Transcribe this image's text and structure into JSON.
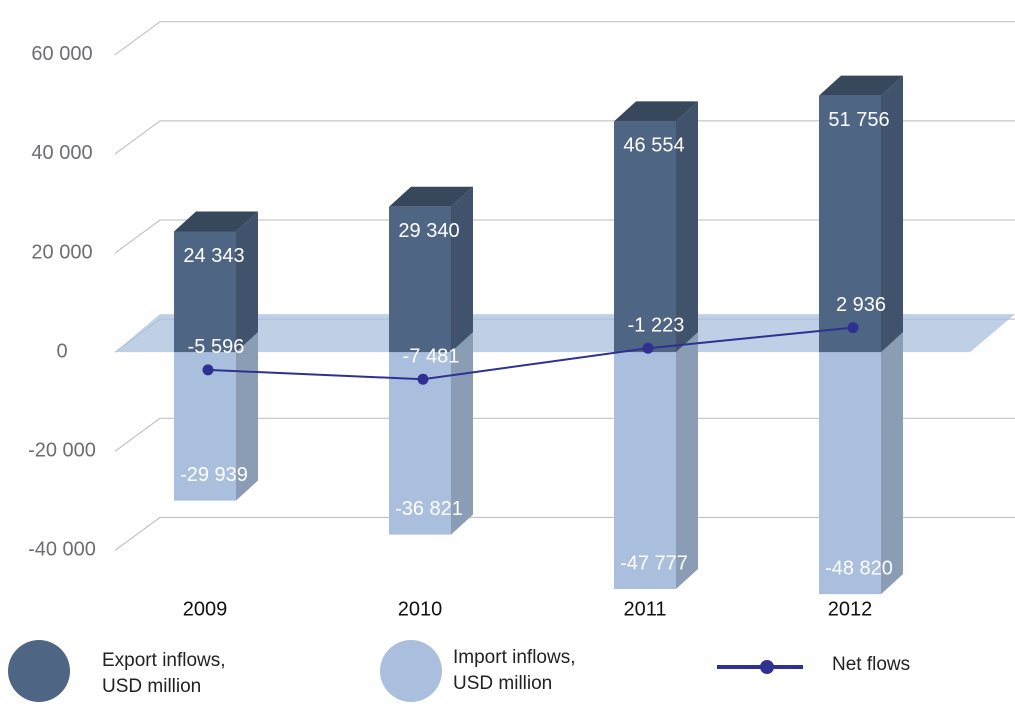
{
  "chart_data": {
    "type": "bar3d",
    "categories": [
      "2009",
      "2010",
      "2011",
      "2012"
    ],
    "series": [
      {
        "name": "Export inflows, USD million",
        "color": "#4f6584",
        "values": [
          24343,
          29340,
          46554,
          51756
        ],
        "value_labels": [
          "24 343",
          "29 340",
          "46 554",
          "51 756"
        ]
      },
      {
        "name": "Import inflows, USD million",
        "color": "#a9bfdd",
        "values": [
          -29939,
          -36821,
          -47777,
          -48820
        ],
        "value_labels": [
          "-29 939",
          "-36 821",
          "-47 777",
          "-48 820"
        ]
      },
      {
        "name": "Net flows",
        "type": "line",
        "color": "#2e3192",
        "values": [
          -5596,
          -7481,
          -1223,
          2936
        ],
        "value_labels": [
          "-5 596",
          "-7 481",
          "-1 223",
          "2 936"
        ]
      }
    ],
    "ylim": [
      -50000,
      65000
    ],
    "yticks": [
      {
        "value": -40000,
        "label": "-40 000"
      },
      {
        "value": -20000,
        "label": "-20 000"
      },
      0,
      {
        "value": 20000,
        "label": "20 000"
      },
      {
        "value": 40000,
        "label": "40 000"
      },
      {
        "value": 60000,
        "label": "60 000"
      }
    ],
    "grid": true
  }
}
